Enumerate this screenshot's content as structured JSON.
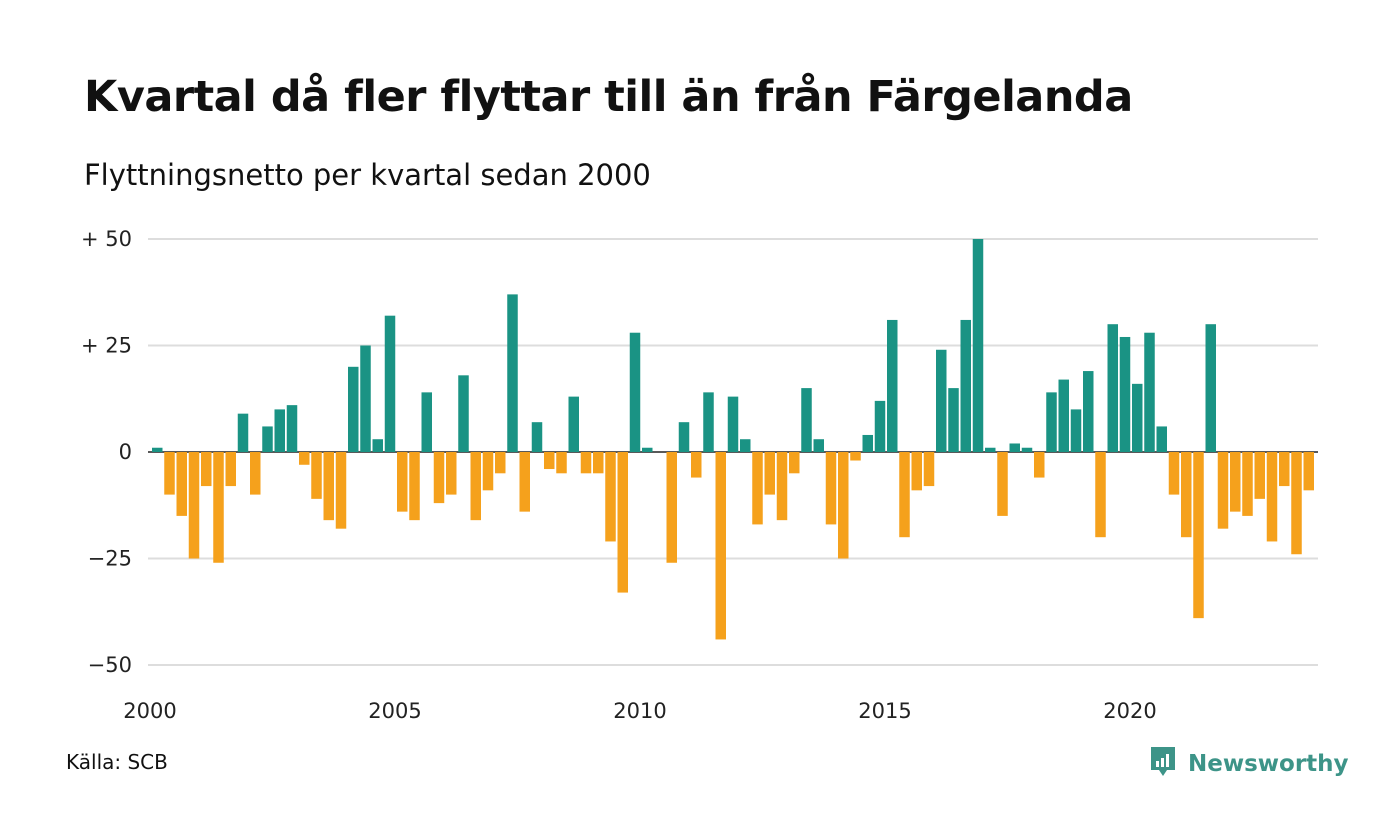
{
  "title": "Kvartal då fler flyttar till än från Färgelanda",
  "subtitle": "Flyttningsnetto per kvartal sedan 2000",
  "source": "Källa: SCB",
  "brand": {
    "name": "Newsworthy",
    "icon": "newsworthy-logo-icon"
  },
  "colors": {
    "positive": "#1a9384",
    "negative": "#f5a11c",
    "grid": "#dddddd",
    "zero": "#222222"
  },
  "chart_data": {
    "type": "bar",
    "x_start": "2000 Q1",
    "quarters_per_year": 4,
    "ylim": [
      -50,
      50
    ],
    "yticks": [
      {
        "value": 50,
        "label": "+ 50"
      },
      {
        "value": 25,
        "label": "+ 25"
      },
      {
        "value": 0,
        "label": "0"
      },
      {
        "value": -25,
        "label": "−25"
      },
      {
        "value": -50,
        "label": "−50"
      }
    ],
    "xticks": [
      "2000",
      "2005",
      "2010",
      "2015",
      "2020"
    ],
    "grid": true,
    "values": [
      1,
      -10,
      -15,
      -25,
      -8,
      -26,
      -8,
      9,
      -10,
      6,
      10,
      11,
      -3,
      -11,
      -16,
      -18,
      20,
      25,
      3,
      32,
      -14,
      -16,
      14,
      -12,
      -10,
      18,
      -16,
      -9,
      -5,
      37,
      -14,
      7,
      -4,
      -5,
      13,
      -5,
      -5,
      -21,
      -33,
      28,
      1,
      0,
      -26,
      7,
      -6,
      14,
      -44,
      13,
      3,
      -17,
      -10,
      -16,
      -5,
      15,
      3,
      -17,
      -25,
      -2,
      4,
      12,
      31,
      -20,
      -9,
      -8,
      24,
      15,
      31,
      50,
      1,
      -15,
      2,
      1,
      -6,
      14,
      17,
      10,
      19,
      -20,
      30,
      27,
      16,
      28,
      6,
      -10,
      -20,
      -39,
      30,
      -18,
      -14,
      -15,
      -11,
      -21,
      -8,
      -24,
      -9
    ]
  }
}
